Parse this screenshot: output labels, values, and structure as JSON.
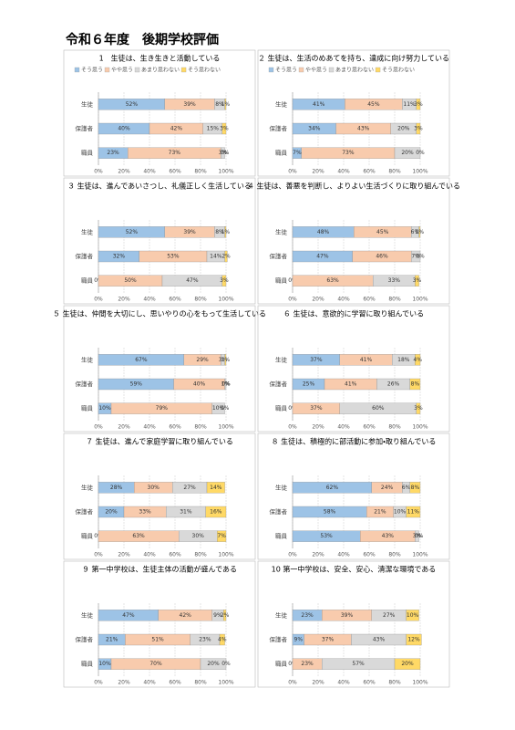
{
  "title": "令和６年度　後期学校評価",
  "chart_data": [
    {
      "type": "bar",
      "orientation": "horizontal",
      "stacked": true,
      "legend": "top",
      "title": "1　生徒は、生き生きと活動している",
      "categories": [
        "生徒",
        "保護者",
        "職員"
      ],
      "xlim": [
        0,
        100
      ],
      "xticks": [
        {
          "value": 0,
          "label": "0%"
        },
        {
          "value": 20,
          "label": "20%"
        },
        {
          "value": 40,
          "label": "40%"
        },
        {
          "value": 60,
          "label": "60%"
        },
        {
          "value": 80,
          "label": "80%"
        },
        {
          "value": 100,
          "label": "100%"
        }
      ],
      "grid": true,
      "series": [
        {
          "name": "そう思う",
          "color": "#9dc3e6",
          "values": [
            52,
            40,
            23
          ],
          "value_labels": [
            "52%",
            "40%",
            "23%"
          ]
        },
        {
          "name": "やや思う",
          "color": "#f8cbad",
          "values": [
            39,
            42,
            73
          ],
          "value_labels": [
            "39%",
            "42%",
            "73%"
          ]
        },
        {
          "name": "あまり思わない",
          "color": "#d9d9d9",
          "values": [
            8,
            15,
            3
          ],
          "value_labels": [
            "8%",
            "15%",
            "3%"
          ]
        },
        {
          "name": "そう思わない",
          "color": "#ffd966",
          "values": [
            1,
            3,
            0
          ],
          "value_labels": [
            "1%",
            "3%",
            "0%"
          ]
        }
      ]
    },
    {
      "type": "bar",
      "orientation": "horizontal",
      "stacked": true,
      "legend": "top",
      "title": "２ 生徒は、生活のめあてを持ち、達成に向け努力している",
      "categories": [
        "生徒",
        "保護者",
        "職員"
      ],
      "xlim": [
        0,
        100
      ],
      "xticks": [
        {
          "value": 0,
          "label": "0%"
        },
        {
          "value": 20,
          "label": "20%"
        },
        {
          "value": 40,
          "label": "40%"
        },
        {
          "value": 60,
          "label": "60%"
        },
        {
          "value": 80,
          "label": "80%"
        },
        {
          "value": 100,
          "label": "100%"
        }
      ],
      "grid": true,
      "series": [
        {
          "name": "そう思う",
          "color": "#9dc3e6",
          "values": [
            41,
            34,
            7
          ],
          "value_labels": [
            "41%",
            "34%",
            "7%"
          ]
        },
        {
          "name": "やや思う",
          "color": "#f8cbad",
          "values": [
            45,
            43,
            73
          ],
          "value_labels": [
            "45%",
            "43%",
            "73%"
          ]
        },
        {
          "name": "あまり思わない",
          "color": "#d9d9d9",
          "values": [
            11,
            20,
            20
          ],
          "value_labels": [
            "11%",
            "20%",
            "20%"
          ]
        },
        {
          "name": "そう思わない",
          "color": "#ffd966",
          "values": [
            3,
            3,
            0
          ],
          "value_labels": [
            "3%",
            "3%",
            "0%"
          ]
        }
      ]
    },
    {
      "type": "bar",
      "orientation": "horizontal",
      "stacked": true,
      "title": "３ 生徒は、進んであいさつし、礼儀正しく生活している",
      "categories": [
        "生徒",
        "保護者",
        "職員"
      ],
      "xlim": [
        0,
        100
      ],
      "xticks": [
        {
          "value": 0,
          "label": "0%"
        },
        {
          "value": 20,
          "label": "20%"
        },
        {
          "value": 40,
          "label": "40%"
        },
        {
          "value": 60,
          "label": "60%"
        },
        {
          "value": 80,
          "label": "80%"
        },
        {
          "value": 100,
          "label": "100%"
        }
      ],
      "grid": true,
      "series": [
        {
          "color": "#9dc3e6",
          "values": [
            52,
            32,
            0
          ],
          "value_labels": [
            "52%",
            "32%",
            "0%"
          ]
        },
        {
          "color": "#f8cbad",
          "values": [
            39,
            53,
            50
          ],
          "value_labels": [
            "39%",
            "53%",
            "50%"
          ]
        },
        {
          "color": "#d9d9d9",
          "values": [
            8,
            14,
            47
          ],
          "value_labels": [
            "8%",
            "14%",
            "47%"
          ]
        },
        {
          "color": "#ffd966",
          "values": [
            1,
            2,
            3
          ],
          "value_labels": [
            "1%",
            "2%",
            "3%"
          ]
        }
      ]
    },
    {
      "type": "bar",
      "orientation": "horizontal",
      "stacked": true,
      "title": "４ 生徒は、善悪を判断し、よりよい生活づくりに取り組んでいる",
      "categories": [
        "生徒",
        "保護者",
        "職員"
      ],
      "xlim": [
        0,
        100
      ],
      "xticks": [
        {
          "value": 0,
          "label": "0%"
        },
        {
          "value": 20,
          "label": "20%"
        },
        {
          "value": 40,
          "label": "40%"
        },
        {
          "value": 60,
          "label": "60%"
        },
        {
          "value": 80,
          "label": "80%"
        },
        {
          "value": 100,
          "label": "100%"
        }
      ],
      "grid": true,
      "series": [
        {
          "color": "#9dc3e6",
          "values": [
            48,
            47,
            0
          ],
          "value_labels": [
            "48%",
            "47%",
            "0%"
          ]
        },
        {
          "color": "#f8cbad",
          "values": [
            45,
            46,
            63
          ],
          "value_labels": [
            "45%",
            "46%",
            "63%"
          ]
        },
        {
          "color": "#d9d9d9",
          "values": [
            6,
            7,
            33
          ],
          "value_labels": [
            "6%",
            "7%",
            "33%"
          ]
        },
        {
          "color": "#ffd966",
          "values": [
            1,
            0,
            3
          ],
          "value_labels": [
            "1%",
            "0%",
            "3%"
          ]
        }
      ]
    },
    {
      "type": "bar",
      "orientation": "horizontal",
      "stacked": true,
      "title": "５ 生徒は、仲間を大切にし、思いやりの心をもって生活している",
      "categories": [
        "生徒",
        "保護者",
        "職員"
      ],
      "xlim": [
        0,
        100
      ],
      "xticks": [
        {
          "value": 0,
          "label": "0%"
        },
        {
          "value": 20,
          "label": "20%"
        },
        {
          "value": 40,
          "label": "40%"
        },
        {
          "value": 60,
          "label": "60%"
        },
        {
          "value": 80,
          "label": "80%"
        },
        {
          "value": 100,
          "label": "100%"
        }
      ],
      "grid": true,
      "series": [
        {
          "color": "#9dc3e6",
          "values": [
            67,
            59,
            10
          ],
          "value_labels": [
            "67%",
            "59%",
            "10%"
          ]
        },
        {
          "color": "#f8cbad",
          "values": [
            29,
            40,
            79
          ],
          "value_labels": [
            "29%",
            "40%",
            "79%"
          ]
        },
        {
          "color": "#d9d9d9",
          "values": [
            3,
            1,
            10
          ],
          "value_labels": [
            "3%",
            "1%",
            "10%"
          ]
        },
        {
          "color": "#ffd966",
          "values": [
            1,
            0,
            0
          ],
          "value_labels": [
            "1%",
            "0%",
            "0%"
          ]
        }
      ]
    },
    {
      "type": "bar",
      "orientation": "horizontal",
      "stacked": true,
      "title": "６ 生徒は、意欲的に学習に取り組んでいる",
      "categories": [
        "生徒",
        "保護者",
        "職員"
      ],
      "xlim": [
        0,
        100
      ],
      "xticks": [
        {
          "value": 0,
          "label": "0%"
        },
        {
          "value": 20,
          "label": "20%"
        },
        {
          "value": 40,
          "label": "40%"
        },
        {
          "value": 60,
          "label": "60%"
        },
        {
          "value": 80,
          "label": "80%"
        },
        {
          "value": 100,
          "label": "100%"
        }
      ],
      "grid": true,
      "series": [
        {
          "color": "#9dc3e6",
          "values": [
            37,
            25,
            0
          ],
          "value_labels": [
            "37%",
            "25%",
            "0%"
          ]
        },
        {
          "color": "#f8cbad",
          "values": [
            41,
            41,
            37
          ],
          "value_labels": [
            "41%",
            "41%",
            "37%"
          ]
        },
        {
          "color": "#d9d9d9",
          "values": [
            18,
            26,
            60
          ],
          "value_labels": [
            "18%",
            "26%",
            "60%"
          ]
        },
        {
          "color": "#ffd966",
          "values": [
            4,
            8,
            3
          ],
          "value_labels": [
            "4%",
            "8%",
            "3%"
          ]
        }
      ]
    },
    {
      "type": "bar",
      "orientation": "horizontal",
      "stacked": true,
      "title": "７ 生徒は、進んで家庭学習に取り組んでいる",
      "categories": [
        "生徒",
        "保護者",
        "職員"
      ],
      "xlim": [
        0,
        100
      ],
      "xticks": [
        {
          "value": 0,
          "label": "0%"
        },
        {
          "value": 20,
          "label": "20%"
        },
        {
          "value": 40,
          "label": "40%"
        },
        {
          "value": 60,
          "label": "60%"
        },
        {
          "value": 80,
          "label": "80%"
        },
        {
          "value": 100,
          "label": "100%"
        }
      ],
      "grid": true,
      "series": [
        {
          "color": "#9dc3e6",
          "values": [
            28,
            20,
            0
          ],
          "value_labels": [
            "28%",
            "20%",
            "0%"
          ]
        },
        {
          "color": "#f8cbad",
          "values": [
            30,
            33,
            63
          ],
          "value_labels": [
            "30%",
            "33%",
            "63%"
          ]
        },
        {
          "color": "#d9d9d9",
          "values": [
            27,
            31,
            30
          ],
          "value_labels": [
            "27%",
            "31%",
            "30%"
          ]
        },
        {
          "color": "#ffd966",
          "values": [
            14,
            16,
            7
          ],
          "value_labels": [
            "14%",
            "16%",
            "7%"
          ]
        }
      ]
    },
    {
      "type": "bar",
      "orientation": "horizontal",
      "stacked": true,
      "title": "８ 生徒は、積極的に部活動に参加・取り組んでいる",
      "categories": [
        "生徒",
        "保護者",
        "職員"
      ],
      "xlim": [
        0,
        100
      ],
      "xticks": [
        {
          "value": 0,
          "label": "0%"
        },
        {
          "value": 20,
          "label": "20%"
        },
        {
          "value": 40,
          "label": "40%"
        },
        {
          "value": 60,
          "label": "60%"
        },
        {
          "value": 80,
          "label": "80%"
        },
        {
          "value": 100,
          "label": "100%"
        }
      ],
      "grid": true,
      "series": [
        {
          "color": "#9dc3e6",
          "values": [
            62,
            58,
            53
          ],
          "value_labels": [
            "62%",
            "58%",
            "53%"
          ]
        },
        {
          "color": "#f8cbad",
          "values": [
            24,
            21,
            43
          ],
          "value_labels": [
            "24%",
            "21%",
            "43%"
          ]
        },
        {
          "color": "#d9d9d9",
          "values": [
            6,
            10,
            3
          ],
          "value_labels": [
            "6%",
            "10%",
            "3%"
          ]
        },
        {
          "color": "#ffd966",
          "values": [
            8,
            11,
            0
          ],
          "value_labels": [
            "8%",
            "11%",
            "0%"
          ]
        }
      ]
    },
    {
      "type": "bar",
      "orientation": "horizontal",
      "stacked": true,
      "title": "９ 第一中学校は、生徒主体の活動が盛んである",
      "categories": [
        "生徒",
        "保護者",
        "職員"
      ],
      "xlim": [
        0,
        100
      ],
      "xticks": [
        {
          "value": 0,
          "label": "0%"
        },
        {
          "value": 20,
          "label": "20%"
        },
        {
          "value": 40,
          "label": "40%"
        },
        {
          "value": 60,
          "label": "60%"
        },
        {
          "value": 80,
          "label": "80%"
        },
        {
          "value": 100,
          "label": "100%"
        }
      ],
      "grid": true,
      "series": [
        {
          "color": "#9dc3e6",
          "values": [
            47,
            21,
            10
          ],
          "value_labels": [
            "47%",
            "21%",
            "10%"
          ]
        },
        {
          "color": "#f8cbad",
          "values": [
            42,
            51,
            70
          ],
          "value_labels": [
            "42%",
            "51%",
            "70%"
          ]
        },
        {
          "color": "#d9d9d9",
          "values": [
            9,
            23,
            20
          ],
          "value_labels": [
            "9%",
            "23%",
            "20%"
          ]
        },
        {
          "color": "#ffd966",
          "values": [
            2,
            4,
            0
          ],
          "value_labels": [
            "2%",
            "4%",
            "0%"
          ]
        }
      ]
    },
    {
      "type": "bar",
      "orientation": "horizontal",
      "stacked": true,
      "title": "10 第一中学校は、安全、安心、清潔な環境である",
      "categories": [
        "生徒",
        "保護者",
        "職員"
      ],
      "xlim": [
        0,
        100
      ],
      "xticks": [
        {
          "value": 0,
          "label": "0%"
        },
        {
          "value": 20,
          "label": "20%"
        },
        {
          "value": 40,
          "label": "40%"
        },
        {
          "value": 60,
          "label": "60%"
        },
        {
          "value": 80,
          "label": "80%"
        },
        {
          "value": 100,
          "label": "100%"
        }
      ],
      "grid": true,
      "series": [
        {
          "color": "#9dc3e6",
          "values": [
            23,
            9,
            0
          ],
          "value_labels": [
            "23%",
            "9%",
            "0%"
          ]
        },
        {
          "color": "#f8cbad",
          "values": [
            39,
            37,
            23
          ],
          "value_labels": [
            "39%",
            "37%",
            "23%"
          ]
        },
        {
          "color": "#d9d9d9",
          "values": [
            27,
            43,
            57
          ],
          "value_labels": [
            "27%",
            "43%",
            "57%"
          ]
        },
        {
          "color": "#ffd966",
          "values": [
            10,
            12,
            20
          ],
          "value_labels": [
            "10%",
            "12%",
            "20%"
          ]
        }
      ]
    }
  ]
}
